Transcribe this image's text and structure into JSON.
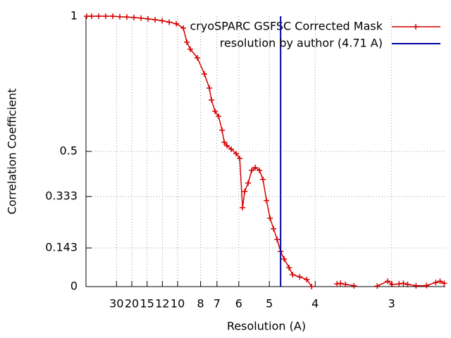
{
  "chart_data": {
    "type": "line",
    "xlabel": "Resolution (A)",
    "ylabel": "Correlation Coefficient",
    "xlim": [
      0,
      0.392
    ],
    "ylim": [
      0,
      1
    ],
    "xticks": [
      {
        "value": 0.03333,
        "label": "30"
      },
      {
        "value": 0.05,
        "label": "20"
      },
      {
        "value": 0.06667,
        "label": "15"
      },
      {
        "value": 0.08333,
        "label": "12"
      },
      {
        "value": 0.1,
        "label": "10"
      },
      {
        "value": 0.125,
        "label": "8"
      },
      {
        "value": 0.14286,
        "label": "7"
      },
      {
        "value": 0.16667,
        "label": "6"
      },
      {
        "value": 0.2,
        "label": "5"
      },
      {
        "value": 0.25,
        "label": "4"
      },
      {
        "value": 0.33333,
        "label": "3"
      }
    ],
    "yticks": [
      0,
      0.143,
      0.333,
      0.5,
      1
    ],
    "grid": true,
    "legend": "top-right",
    "series": [
      {
        "name": "cryoSPARC GSFSC Corrected Mask",
        "color": "#d40000",
        "x": [
          0.0008,
          0.0062,
          0.0138,
          0.0215,
          0.0292,
          0.0369,
          0.0446,
          0.0523,
          0.06,
          0.0677,
          0.0754,
          0.0831,
          0.0908,
          0.0985,
          0.1062,
          0.11,
          0.1138,
          0.1215,
          0.1292,
          0.1346,
          0.1369,
          0.1408,
          0.1446,
          0.1485,
          0.1508,
          0.1538,
          0.1585,
          0.1638,
          0.1677,
          0.1708,
          0.1731,
          0.1769,
          0.1808,
          0.1846,
          0.1892,
          0.1931,
          0.1969,
          0.2008,
          0.2046,
          0.2085,
          0.2123,
          0.2162,
          0.2215,
          0.2254,
          0.2331,
          0.2408,
          0.2462,
          0.25,
          0.2738,
          0.2777,
          0.2831,
          0.2923,
          0.3,
          0.3177,
          0.3292,
          0.3338,
          0.3415,
          0.3462,
          0.3508,
          0.36,
          0.3715,
          0.3815,
          0.3862,
          0.3908
        ],
        "values": [
          1,
          1,
          1,
          1,
          1,
          0.998,
          0.997,
          0.995,
          0.993,
          0.99,
          0.987,
          0.983,
          0.978,
          0.972,
          0.956,
          0.904,
          0.878,
          0.846,
          0.786,
          0.734,
          0.69,
          0.648,
          0.63,
          0.578,
          0.534,
          0.521,
          0.508,
          0.492,
          0.474,
          0.292,
          0.352,
          0.383,
          0.43,
          0.44,
          0.43,
          0.396,
          0.318,
          0.253,
          0.214,
          0.174,
          0.13,
          0.102,
          0.07,
          0.044,
          0.036,
          0.026,
          0,
          null,
          0.01,
          0.012,
          0.008,
          0.003,
          null,
          0.002,
          0.02,
          0.008,
          0.01,
          0.012,
          0.008,
          0.003,
          0.004,
          0.015,
          0.02,
          0.012
        ]
      },
      {
        "name": "resolution by author (4.71 A)",
        "color": "#0000a0",
        "vline": 0.2123
      }
    ]
  }
}
